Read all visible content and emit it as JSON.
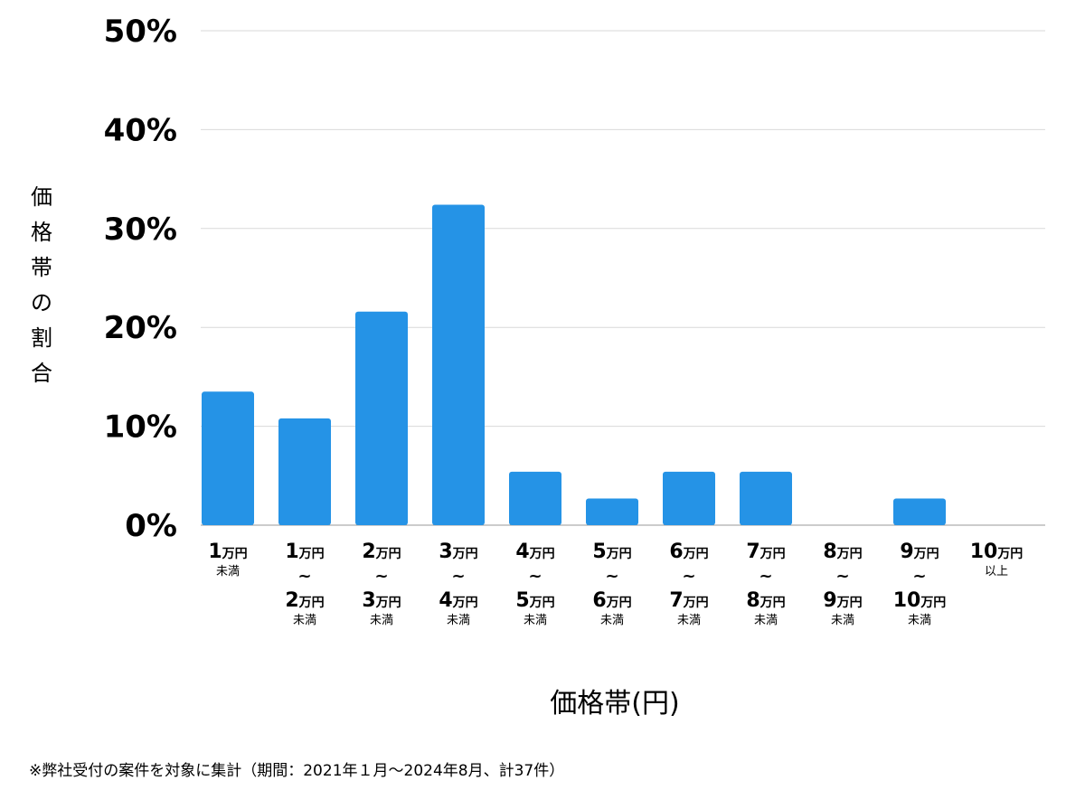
{
  "chart_data": {
    "type": "bar",
    "categories": [
      {
        "from": "1",
        "to": null,
        "unit": "万円",
        "note": "未満"
      },
      {
        "from": "1",
        "to": "2",
        "unit": "万円",
        "note": "未満"
      },
      {
        "from": "2",
        "to": "3",
        "unit": "万円",
        "note": "未満"
      },
      {
        "from": "3",
        "to": "4",
        "unit": "万円",
        "note": "未満"
      },
      {
        "from": "4",
        "to": "5",
        "unit": "万円",
        "note": "未満"
      },
      {
        "from": "5",
        "to": "6",
        "unit": "万円",
        "note": "未満"
      },
      {
        "from": "6",
        "to": "7",
        "unit": "万円",
        "note": "未満"
      },
      {
        "from": "7",
        "to": "8",
        "unit": "万円",
        "note": "未満"
      },
      {
        "from": "8",
        "to": "9",
        "unit": "万円",
        "note": "未満"
      },
      {
        "from": "9",
        "to": "10",
        "unit": "万円",
        "note": "未満"
      },
      {
        "from": "10",
        "to": null,
        "unit": "万円",
        "note": "以上"
      }
    ],
    "range_separator": "~",
    "values": [
      13.5,
      10.8,
      21.6,
      32.4,
      5.4,
      2.7,
      5.4,
      5.4,
      0,
      2.7,
      0
    ],
    "ylim": [
      0,
      50
    ],
    "yticks": [
      "0%",
      "10%",
      "20%",
      "30%",
      "40%",
      "50%"
    ],
    "ylabel": "価格帯の割合",
    "xlabel": "価格帯(円)",
    "grid": true,
    "bar_color": "#2593e6"
  },
  "footnote": "※弊社受付の案件を対象に集計（期間：2021年１月〜2024年8月、計37件）"
}
